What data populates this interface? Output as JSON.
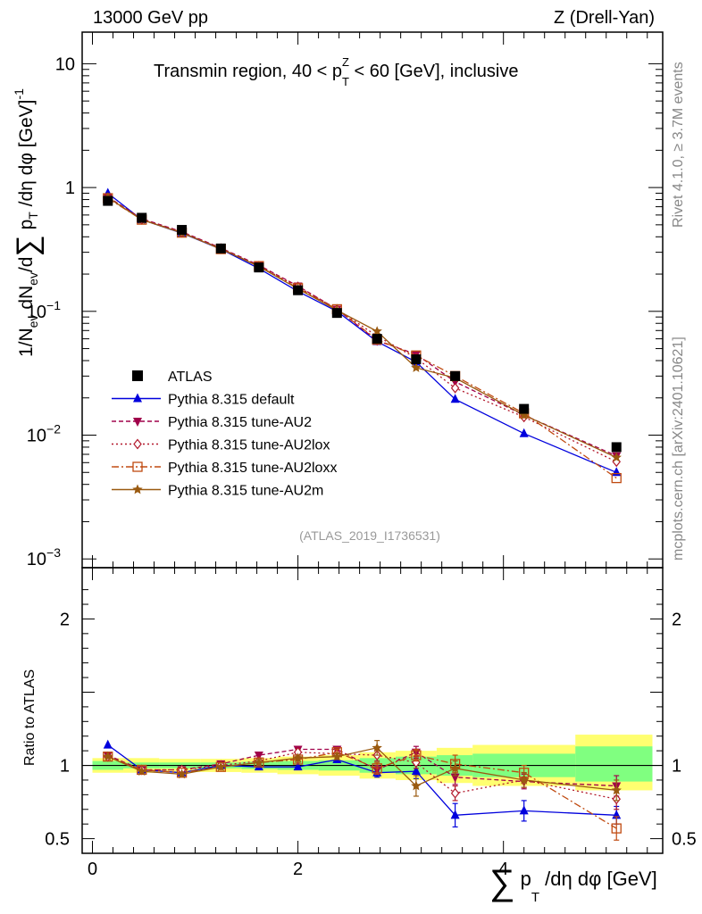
{
  "header": {
    "left": "13000 GeV pp",
    "right": "Z (Drell-Yan)"
  },
  "side_labels": {
    "rivet": "Rivet 4.1.0, ≥ 3.7M events",
    "mcplots": "mcplots.cern.ch [arXiv:2401.10621]"
  },
  "colors": {
    "atlas": "#000000",
    "default": "#0000dd",
    "au2": "#a0004a",
    "au2lox": "#b2182b",
    "au2loxx": "#c04a10",
    "au2m": "#9a5a10",
    "band_stat": "#80ff80",
    "band_total": "#ffff70"
  },
  "chart_data": [
    {
      "type": "line",
      "title": "Transmin region, 40 < p_T^Z < 60 [GeV], inclusive",
      "title_parts": {
        "pre": "Transmin region, 40 < p",
        "sub": "T",
        "sup": "Z",
        "post": " < 60 [GeV], inclusive"
      },
      "ylabel": "1/N_ev dN_ev/d∑ p_T /dη dφ [GeV]^-1",
      "ylabel_parts": {
        "part1": "1/N",
        "sub1": "ev",
        "part2": " dN",
        "sub2": "ev",
        "part3": "/d",
        "sum": "∑",
        "part4": " p",
        "sub4": "T",
        "part5": " /dη dφ  [GeV]",
        "sup5": "-1"
      },
      "yscale": "log",
      "ylim": [
        0.00085,
        18
      ],
      "xlim": [
        -0.1,
        5.55
      ],
      "ytick_labels": [
        {
          "value": 10,
          "mant": "10",
          "exp": ""
        },
        {
          "value": 1,
          "mant": "1",
          "exp": ""
        },
        {
          "value": 0.1,
          "mant": "10",
          "exp": "−1"
        },
        {
          "value": 0.01,
          "mant": "10",
          "exp": "−2"
        },
        {
          "value": 0.001,
          "mant": "10",
          "exp": "−3"
        }
      ],
      "watermark": "(ATLAS_2019_I1736531)",
      "x": [
        0.15,
        0.48,
        0.87,
        1.25,
        1.62,
        2.0,
        2.38,
        2.77,
        3.15,
        3.53,
        4.2,
        5.1
      ],
      "atlas": {
        "name": "ATLAS",
        "values": [
          0.78,
          0.57,
          0.455,
          0.322,
          0.226,
          0.148,
          0.097,
          0.06,
          0.041,
          0.03,
          0.0163,
          0.008
        ]
      },
      "series": [
        {
          "key": "default",
          "name": "Pythia 8.315 default",
          "marker": "triangle-up",
          "dash": "",
          "values": [
            0.9,
            0.55,
            0.428,
            0.318,
            0.222,
            0.145,
            0.1,
            0.057,
            0.039,
            0.0195,
            0.0103,
            0.005
          ]
        },
        {
          "key": "au2",
          "name": "Pythia 8.315 tune-AU2",
          "marker": "triangle-down",
          "dash": "5,3",
          "values": [
            0.84,
            0.56,
            0.44,
            0.325,
            0.236,
            0.16,
            0.104,
            0.058,
            0.045,
            0.027,
            0.0145,
            0.0068
          ]
        },
        {
          "key": "au2lox",
          "name": "Pythia 8.315 tune-AU2lox",
          "marker": "diamond",
          "dash": "2,3",
          "values": [
            0.83,
            0.552,
            0.435,
            0.322,
            0.232,
            0.158,
            0.104,
            0.063,
            0.042,
            0.024,
            0.014,
            0.0061
          ]
        },
        {
          "key": "au2loxx",
          "name": "Pythia 8.315 tune-AU2loxx",
          "marker": "square-open",
          "dash": "8,3,2,3",
          "values": [
            0.82,
            0.55,
            0.432,
            0.318,
            0.232,
            0.154,
            0.104,
            0.059,
            0.044,
            0.03,
            0.015,
            0.0045
          ]
        },
        {
          "key": "au2m",
          "name": "Pythia 8.315 tune-AU2m",
          "marker": "star",
          "dash": "",
          "values": [
            0.83,
            0.55,
            0.43,
            0.32,
            0.23,
            0.152,
            0.102,
            0.069,
            0.035,
            0.029,
            0.0145,
            0.0066
          ]
        }
      ]
    },
    {
      "type": "line",
      "ylabel": "Ratio to ATLAS",
      "xlabel": "∑ p_T /dη dφ [GeV]",
      "xlabel_parts": {
        "sum": "∑",
        "p": " p",
        "sub": "T",
        "rest": " /dη dφ [GeV]"
      },
      "xlim": [
        -0.1,
        5.55
      ],
      "ylim": [
        0.4,
        2.35
      ],
      "xtick_labels": [
        {
          "value": 0,
          "label": "0"
        },
        {
          "value": 2,
          "label": "2"
        },
        {
          "value": 4,
          "label": "4"
        }
      ],
      "ytick_labels": [
        {
          "value": 0.5,
          "label": "0.5"
        },
        {
          "value": 1,
          "label": "1"
        },
        {
          "value": 2,
          "label": "2"
        }
      ],
      "bands": {
        "x_edges": [
          0.0,
          0.3,
          0.65,
          1.05,
          1.45,
          1.8,
          2.2,
          2.6,
          2.95,
          3.35,
          3.7,
          4.7,
          5.45
        ],
        "stat": [
          [
            0.97,
            1.03
          ],
          [
            0.98,
            1.02
          ],
          [
            0.98,
            1.02
          ],
          [
            0.98,
            1.02
          ],
          [
            0.975,
            1.025
          ],
          [
            0.97,
            1.03
          ],
          [
            0.965,
            1.035
          ],
          [
            0.95,
            1.05
          ],
          [
            0.94,
            1.06
          ],
          [
            0.93,
            1.07
          ],
          [
            0.92,
            1.08
          ],
          [
            0.89,
            1.13
          ]
        ],
        "total": [
          [
            0.95,
            1.05
          ],
          [
            0.95,
            1.05
          ],
          [
            0.955,
            1.045
          ],
          [
            0.955,
            1.045
          ],
          [
            0.95,
            1.05
          ],
          [
            0.94,
            1.06
          ],
          [
            0.93,
            1.07
          ],
          [
            0.91,
            1.09
          ],
          [
            0.9,
            1.1
          ],
          [
            0.88,
            1.12
          ],
          [
            0.86,
            1.14
          ],
          [
            0.83,
            1.21
          ]
        ]
      },
      "series": [
        {
          "key": "default",
          "values": [
            1.14,
            0.97,
            0.95,
            1.0,
            0.99,
            0.99,
            1.04,
            0.95,
            0.96,
            0.66,
            0.69,
            0.66
          ],
          "errors": [
            0.01,
            0.01,
            0.01,
            0.01,
            0.01,
            0.01,
            0.02,
            0.03,
            0.05,
            0.08,
            0.07,
            0.06
          ]
        },
        {
          "key": "au2",
          "values": [
            1.07,
            0.97,
            0.97,
            1.01,
            1.07,
            1.11,
            1.11,
            0.97,
            1.09,
            0.92,
            0.89,
            0.86
          ],
          "errors": [
            0.01,
            0.01,
            0.01,
            0.01,
            0.02,
            0.02,
            0.02,
            0.03,
            0.04,
            0.05,
            0.05,
            0.07
          ]
        },
        {
          "key": "au2lox",
          "values": [
            1.06,
            0.97,
            0.97,
            1.0,
            1.03,
            1.09,
            1.08,
            1.07,
            1.02,
            0.81,
            0.9,
            0.77
          ],
          "errors": [
            0.01,
            0.01,
            0.01,
            0.01,
            0.02,
            0.02,
            0.02,
            0.04,
            0.04,
            0.05,
            0.05,
            0.07
          ]
        },
        {
          "key": "au2loxx",
          "values": [
            1.06,
            0.97,
            0.95,
            0.99,
            1.02,
            1.04,
            1.09,
            0.98,
            1.07,
            1.01,
            0.95,
            0.57
          ],
          "errors": [
            0.01,
            0.01,
            0.01,
            0.01,
            0.02,
            0.02,
            0.02,
            0.04,
            0.04,
            0.06,
            0.05,
            0.08
          ]
        },
        {
          "key": "au2m",
          "values": [
            1.06,
            0.96,
            0.94,
            0.99,
            1.02,
            1.05,
            1.06,
            1.12,
            0.86,
            0.98,
            0.9,
            0.83
          ],
          "errors": [
            0.01,
            0.01,
            0.01,
            0.01,
            0.02,
            0.02,
            0.02,
            0.05,
            0.07,
            0.05,
            0.05,
            0.07
          ]
        }
      ]
    }
  ]
}
